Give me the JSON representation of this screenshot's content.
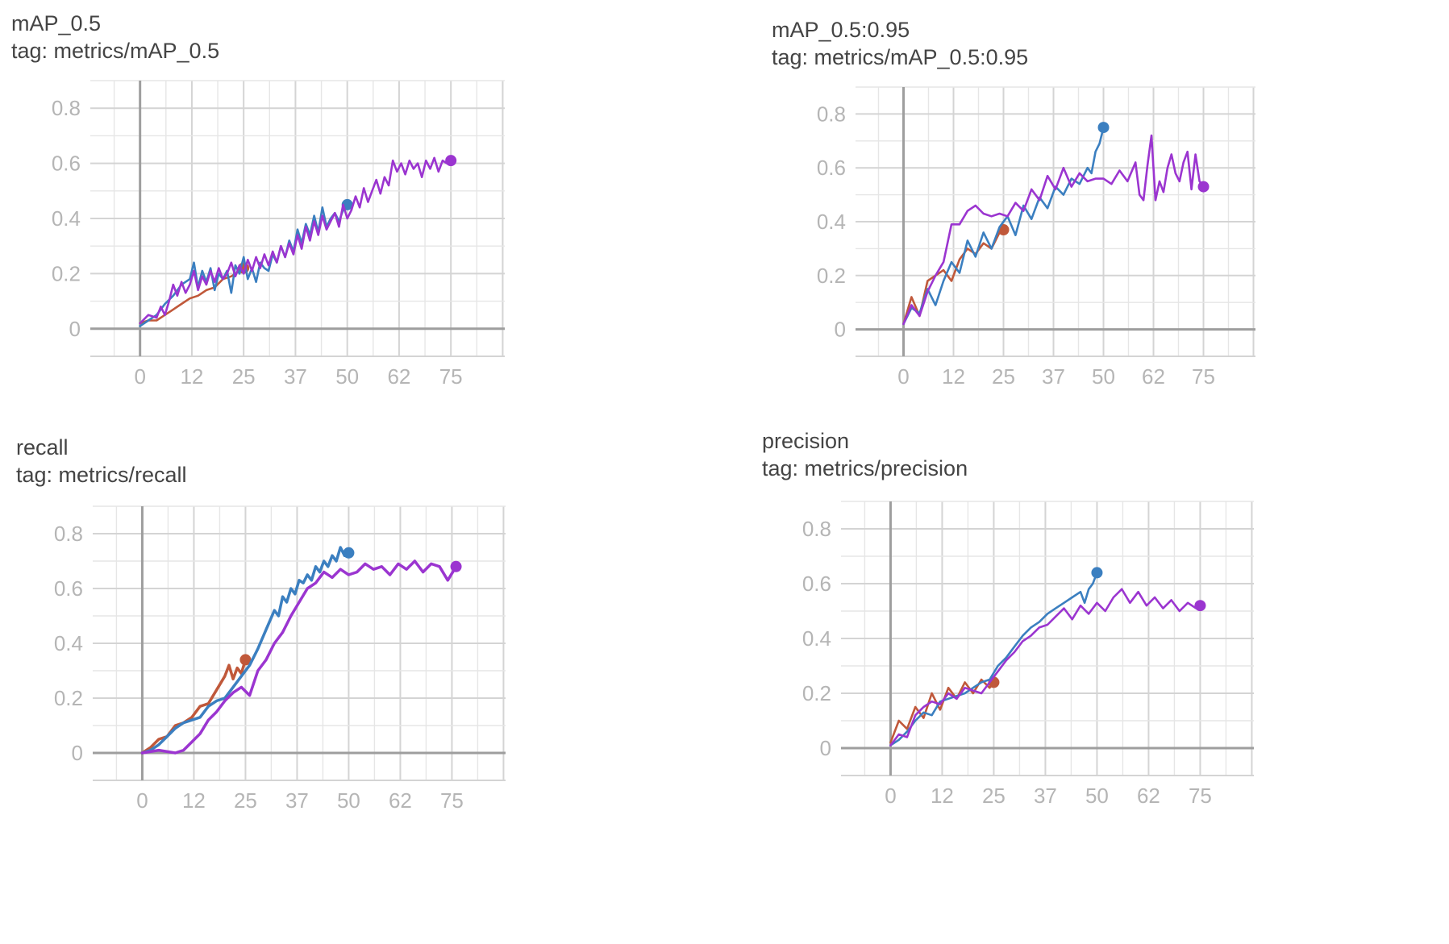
{
  "chart_data": [
    {
      "type": "line",
      "title": "mAP_0.5",
      "tag": "tag: metrics/mAP_0.5",
      "xticks": [
        "0",
        "12",
        "25",
        "37",
        "50",
        "62",
        "75"
      ],
      "yticks": [
        "0",
        "0.2",
        "0.4",
        "0.6",
        "0.8"
      ],
      "xlim": [
        -12,
        88
      ],
      "ylim": [
        -0.1,
        0.9
      ],
      "series": [
        {
          "color": "#c0583a",
          "x": [
            0,
            2,
            4,
            6,
            8,
            10,
            12,
            14,
            16,
            18,
            20,
            22,
            24,
            25
          ],
          "values": [
            0.02,
            0.03,
            0.03,
            0.05,
            0.07,
            0.09,
            0.11,
            0.12,
            0.14,
            0.15,
            0.18,
            0.19,
            0.21,
            0.22
          ]
        },
        {
          "color": "#3b7fc0",
          "x": [
            0,
            2,
            4,
            6,
            8,
            10,
            12,
            13,
            14,
            15,
            16,
            17,
            18,
            19,
            20,
            21,
            22,
            23,
            24,
            25,
            26,
            27,
            28,
            29,
            30,
            31,
            32,
            33,
            34,
            35,
            36,
            37,
            38,
            39,
            40,
            41,
            42,
            43,
            44,
            45,
            46,
            47,
            48,
            49,
            50
          ],
          "values": [
            0.01,
            0.03,
            0.05,
            0.09,
            0.12,
            0.16,
            0.18,
            0.24,
            0.15,
            0.21,
            0.17,
            0.22,
            0.14,
            0.2,
            0.18,
            0.21,
            0.13,
            0.23,
            0.2,
            0.26,
            0.18,
            0.22,
            0.17,
            0.24,
            0.22,
            0.21,
            0.27,
            0.24,
            0.3,
            0.26,
            0.32,
            0.28,
            0.36,
            0.31,
            0.38,
            0.34,
            0.41,
            0.35,
            0.44,
            0.37,
            0.4,
            0.42,
            0.39,
            0.43,
            0.45
          ]
        },
        {
          "color": "#9b35d0",
          "x": [
            0,
            2,
            4,
            5,
            6,
            7,
            8,
            9,
            10,
            11,
            12,
            13,
            14,
            15,
            16,
            17,
            18,
            19,
            20,
            21,
            22,
            23,
            24,
            25,
            26,
            27,
            28,
            29,
            30,
            31,
            32,
            33,
            34,
            35,
            36,
            37,
            38,
            39,
            40,
            41,
            42,
            43,
            44,
            45,
            46,
            47,
            48,
            49,
            50,
            51,
            52,
            53,
            54,
            55,
            56,
            57,
            58,
            59,
            60,
            61,
            62,
            63,
            64,
            65,
            66,
            67,
            68,
            69,
            70,
            71,
            72,
            73,
            74,
            75
          ],
          "values": [
            0.02,
            0.05,
            0.04,
            0.08,
            0.05,
            0.1,
            0.16,
            0.12,
            0.17,
            0.13,
            0.16,
            0.21,
            0.14,
            0.19,
            0.16,
            0.21,
            0.17,
            0.22,
            0.18,
            0.2,
            0.24,
            0.19,
            0.23,
            0.2,
            0.25,
            0.21,
            0.26,
            0.22,
            0.27,
            0.23,
            0.28,
            0.24,
            0.3,
            0.26,
            0.31,
            0.27,
            0.34,
            0.29,
            0.37,
            0.32,
            0.39,
            0.34,
            0.41,
            0.36,
            0.39,
            0.42,
            0.37,
            0.45,
            0.4,
            0.43,
            0.48,
            0.44,
            0.51,
            0.46,
            0.5,
            0.54,
            0.49,
            0.55,
            0.52,
            0.61,
            0.57,
            0.6,
            0.56,
            0.61,
            0.58,
            0.6,
            0.55,
            0.61,
            0.58,
            0.62,
            0.57,
            0.61,
            0.6,
            0.61
          ]
        }
      ]
    },
    {
      "type": "line",
      "title": "mAP_0.5:0.95",
      "tag": "tag: metrics/mAP_0.5:0.95",
      "xticks": [
        "0",
        "12",
        "25",
        "37",
        "50",
        "62",
        "75"
      ],
      "yticks": [
        "0",
        "0.2",
        "0.4",
        "0.6",
        "0.8"
      ],
      "xlim": [
        -12,
        88
      ],
      "ylim": [
        -0.1,
        0.9
      ],
      "series": [
        {
          "color": "#c0583a",
          "x": [
            0,
            2,
            4,
            6,
            8,
            10,
            12,
            14,
            16,
            18,
            20,
            22,
            24,
            25
          ],
          "values": [
            0.02,
            0.12,
            0.05,
            0.18,
            0.2,
            0.22,
            0.18,
            0.26,
            0.3,
            0.28,
            0.32,
            0.3,
            0.36,
            0.37
          ]
        },
        {
          "color": "#3b7fc0",
          "x": [
            0,
            2,
            4,
            6,
            8,
            10,
            12,
            14,
            16,
            18,
            20,
            22,
            24,
            26,
            28,
            30,
            32,
            34,
            36,
            38,
            40,
            42,
            44,
            46,
            47,
            48,
            49,
            50
          ],
          "values": [
            0.02,
            0.08,
            0.06,
            0.15,
            0.09,
            0.18,
            0.25,
            0.21,
            0.33,
            0.27,
            0.36,
            0.3,
            0.38,
            0.42,
            0.35,
            0.46,
            0.41,
            0.49,
            0.45,
            0.53,
            0.5,
            0.56,
            0.54,
            0.6,
            0.58,
            0.66,
            0.69,
            0.75
          ]
        },
        {
          "color": "#9b35d0",
          "x": [
            0,
            2,
            4,
            6,
            8,
            10,
            12,
            14,
            16,
            18,
            20,
            22,
            24,
            26,
            28,
            30,
            32,
            34,
            36,
            38,
            40,
            42,
            44,
            46,
            48,
            50,
            52,
            54,
            56,
            58,
            59,
            60,
            61,
            62,
            63,
            64,
            65,
            66,
            67,
            68,
            69,
            70,
            71,
            72,
            73,
            74,
            75
          ],
          "values": [
            0.02,
            0.09,
            0.05,
            0.14,
            0.2,
            0.25,
            0.39,
            0.39,
            0.44,
            0.46,
            0.43,
            0.42,
            0.43,
            0.42,
            0.47,
            0.44,
            0.52,
            0.48,
            0.57,
            0.52,
            0.6,
            0.53,
            0.58,
            0.55,
            0.56,
            0.56,
            0.54,
            0.59,
            0.55,
            0.62,
            0.5,
            0.48,
            0.61,
            0.72,
            0.48,
            0.55,
            0.51,
            0.6,
            0.65,
            0.58,
            0.55,
            0.62,
            0.66,
            0.52,
            0.65,
            0.55,
            0.53
          ]
        }
      ]
    },
    {
      "type": "line",
      "title": "recall",
      "tag": "tag: metrics/recall",
      "xticks": [
        "0",
        "12",
        "25",
        "37",
        "50",
        "62",
        "75"
      ],
      "yticks": [
        "0",
        "0.2",
        "0.4",
        "0.6",
        "0.8"
      ],
      "xlim": [
        -12,
        88
      ],
      "ylim": [
        -0.1,
        0.9
      ],
      "series": [
        {
          "color": "#c0583a",
          "x": [
            0,
            2,
            4,
            6,
            8,
            10,
            12,
            14,
            16,
            18,
            20,
            21,
            22,
            23,
            24,
            25
          ],
          "values": [
            0,
            0.02,
            0.05,
            0.06,
            0.1,
            0.11,
            0.13,
            0.17,
            0.18,
            0.23,
            0.28,
            0.32,
            0.27,
            0.31,
            0.29,
            0.34
          ]
        },
        {
          "color": "#3b7fc0",
          "x": [
            0,
            2,
            4,
            6,
            8,
            10,
            12,
            14,
            16,
            18,
            20,
            22,
            24,
            26,
            28,
            30,
            32,
            33,
            34,
            35,
            36,
            37,
            38,
            39,
            40,
            41,
            42,
            43,
            44,
            45,
            46,
            47,
            48,
            49,
            50
          ],
          "values": [
            0,
            0.01,
            0.03,
            0.06,
            0.09,
            0.11,
            0.12,
            0.13,
            0.17,
            0.19,
            0.2,
            0.24,
            0.28,
            0.32,
            0.38,
            0.45,
            0.52,
            0.5,
            0.57,
            0.55,
            0.6,
            0.58,
            0.63,
            0.62,
            0.65,
            0.63,
            0.68,
            0.66,
            0.7,
            0.68,
            0.72,
            0.7,
            0.75,
            0.72,
            0.73
          ]
        },
        {
          "color": "#9b35d0",
          "x": [
            0,
            4,
            8,
            10,
            12,
            14,
            16,
            18,
            20,
            22,
            24,
            26,
            28,
            30,
            32,
            34,
            36,
            38,
            40,
            42,
            44,
            46,
            48,
            50,
            52,
            54,
            56,
            58,
            60,
            62,
            64,
            66,
            68,
            70,
            72,
            74,
            76
          ],
          "values": [
            0,
            0.01,
            0,
            0.01,
            0.04,
            0.07,
            0.12,
            0.15,
            0.19,
            0.22,
            0.24,
            0.21,
            0.3,
            0.34,
            0.4,
            0.44,
            0.5,
            0.55,
            0.6,
            0.62,
            0.66,
            0.64,
            0.67,
            0.65,
            0.66,
            0.69,
            0.67,
            0.68,
            0.65,
            0.69,
            0.67,
            0.7,
            0.66,
            0.69,
            0.68,
            0.63,
            0.68
          ]
        }
      ]
    },
    {
      "type": "line",
      "title": "precision",
      "tag": "tag: metrics/precision",
      "xticks": [
        "0",
        "12",
        "25",
        "37",
        "50",
        "62",
        "75"
      ],
      "yticks": [
        "0",
        "0.2",
        "0.4",
        "0.6",
        "0.8"
      ],
      "xlim": [
        -12,
        88
      ],
      "ylim": [
        -0.1,
        0.9
      ],
      "series": [
        {
          "color": "#c0583a",
          "x": [
            0,
            2,
            4,
            6,
            8,
            10,
            12,
            14,
            16,
            18,
            20,
            22,
            24,
            25
          ],
          "values": [
            0.02,
            0.1,
            0.07,
            0.15,
            0.11,
            0.2,
            0.14,
            0.22,
            0.18,
            0.24,
            0.2,
            0.25,
            0.22,
            0.24
          ]
        },
        {
          "color": "#3b7fc0",
          "x": [
            0,
            2,
            4,
            6,
            8,
            10,
            12,
            14,
            16,
            18,
            20,
            22,
            24,
            26,
            28,
            30,
            32,
            34,
            36,
            38,
            40,
            42,
            44,
            46,
            47,
            48,
            49,
            50
          ],
          "values": [
            0.01,
            0.03,
            0.06,
            0.1,
            0.13,
            0.12,
            0.17,
            0.18,
            0.19,
            0.2,
            0.22,
            0.24,
            0.25,
            0.3,
            0.33,
            0.37,
            0.41,
            0.44,
            0.46,
            0.49,
            0.51,
            0.53,
            0.55,
            0.57,
            0.53,
            0.58,
            0.6,
            0.64
          ]
        },
        {
          "color": "#9b35d0",
          "x": [
            0,
            2,
            4,
            6,
            8,
            10,
            12,
            14,
            16,
            18,
            20,
            22,
            24,
            26,
            28,
            30,
            32,
            34,
            36,
            38,
            40,
            42,
            44,
            46,
            48,
            50,
            52,
            54,
            56,
            58,
            60,
            62,
            64,
            66,
            68,
            70,
            72,
            74,
            75
          ],
          "values": [
            0.01,
            0.05,
            0.04,
            0.12,
            0.15,
            0.17,
            0.16,
            0.2,
            0.18,
            0.22,
            0.21,
            0.2,
            0.24,
            0.28,
            0.32,
            0.35,
            0.39,
            0.41,
            0.44,
            0.45,
            0.48,
            0.51,
            0.47,
            0.52,
            0.49,
            0.53,
            0.5,
            0.55,
            0.58,
            0.53,
            0.57,
            0.52,
            0.55,
            0.51,
            0.54,
            0.5,
            0.53,
            0.51,
            0.52
          ]
        }
      ]
    }
  ]
}
